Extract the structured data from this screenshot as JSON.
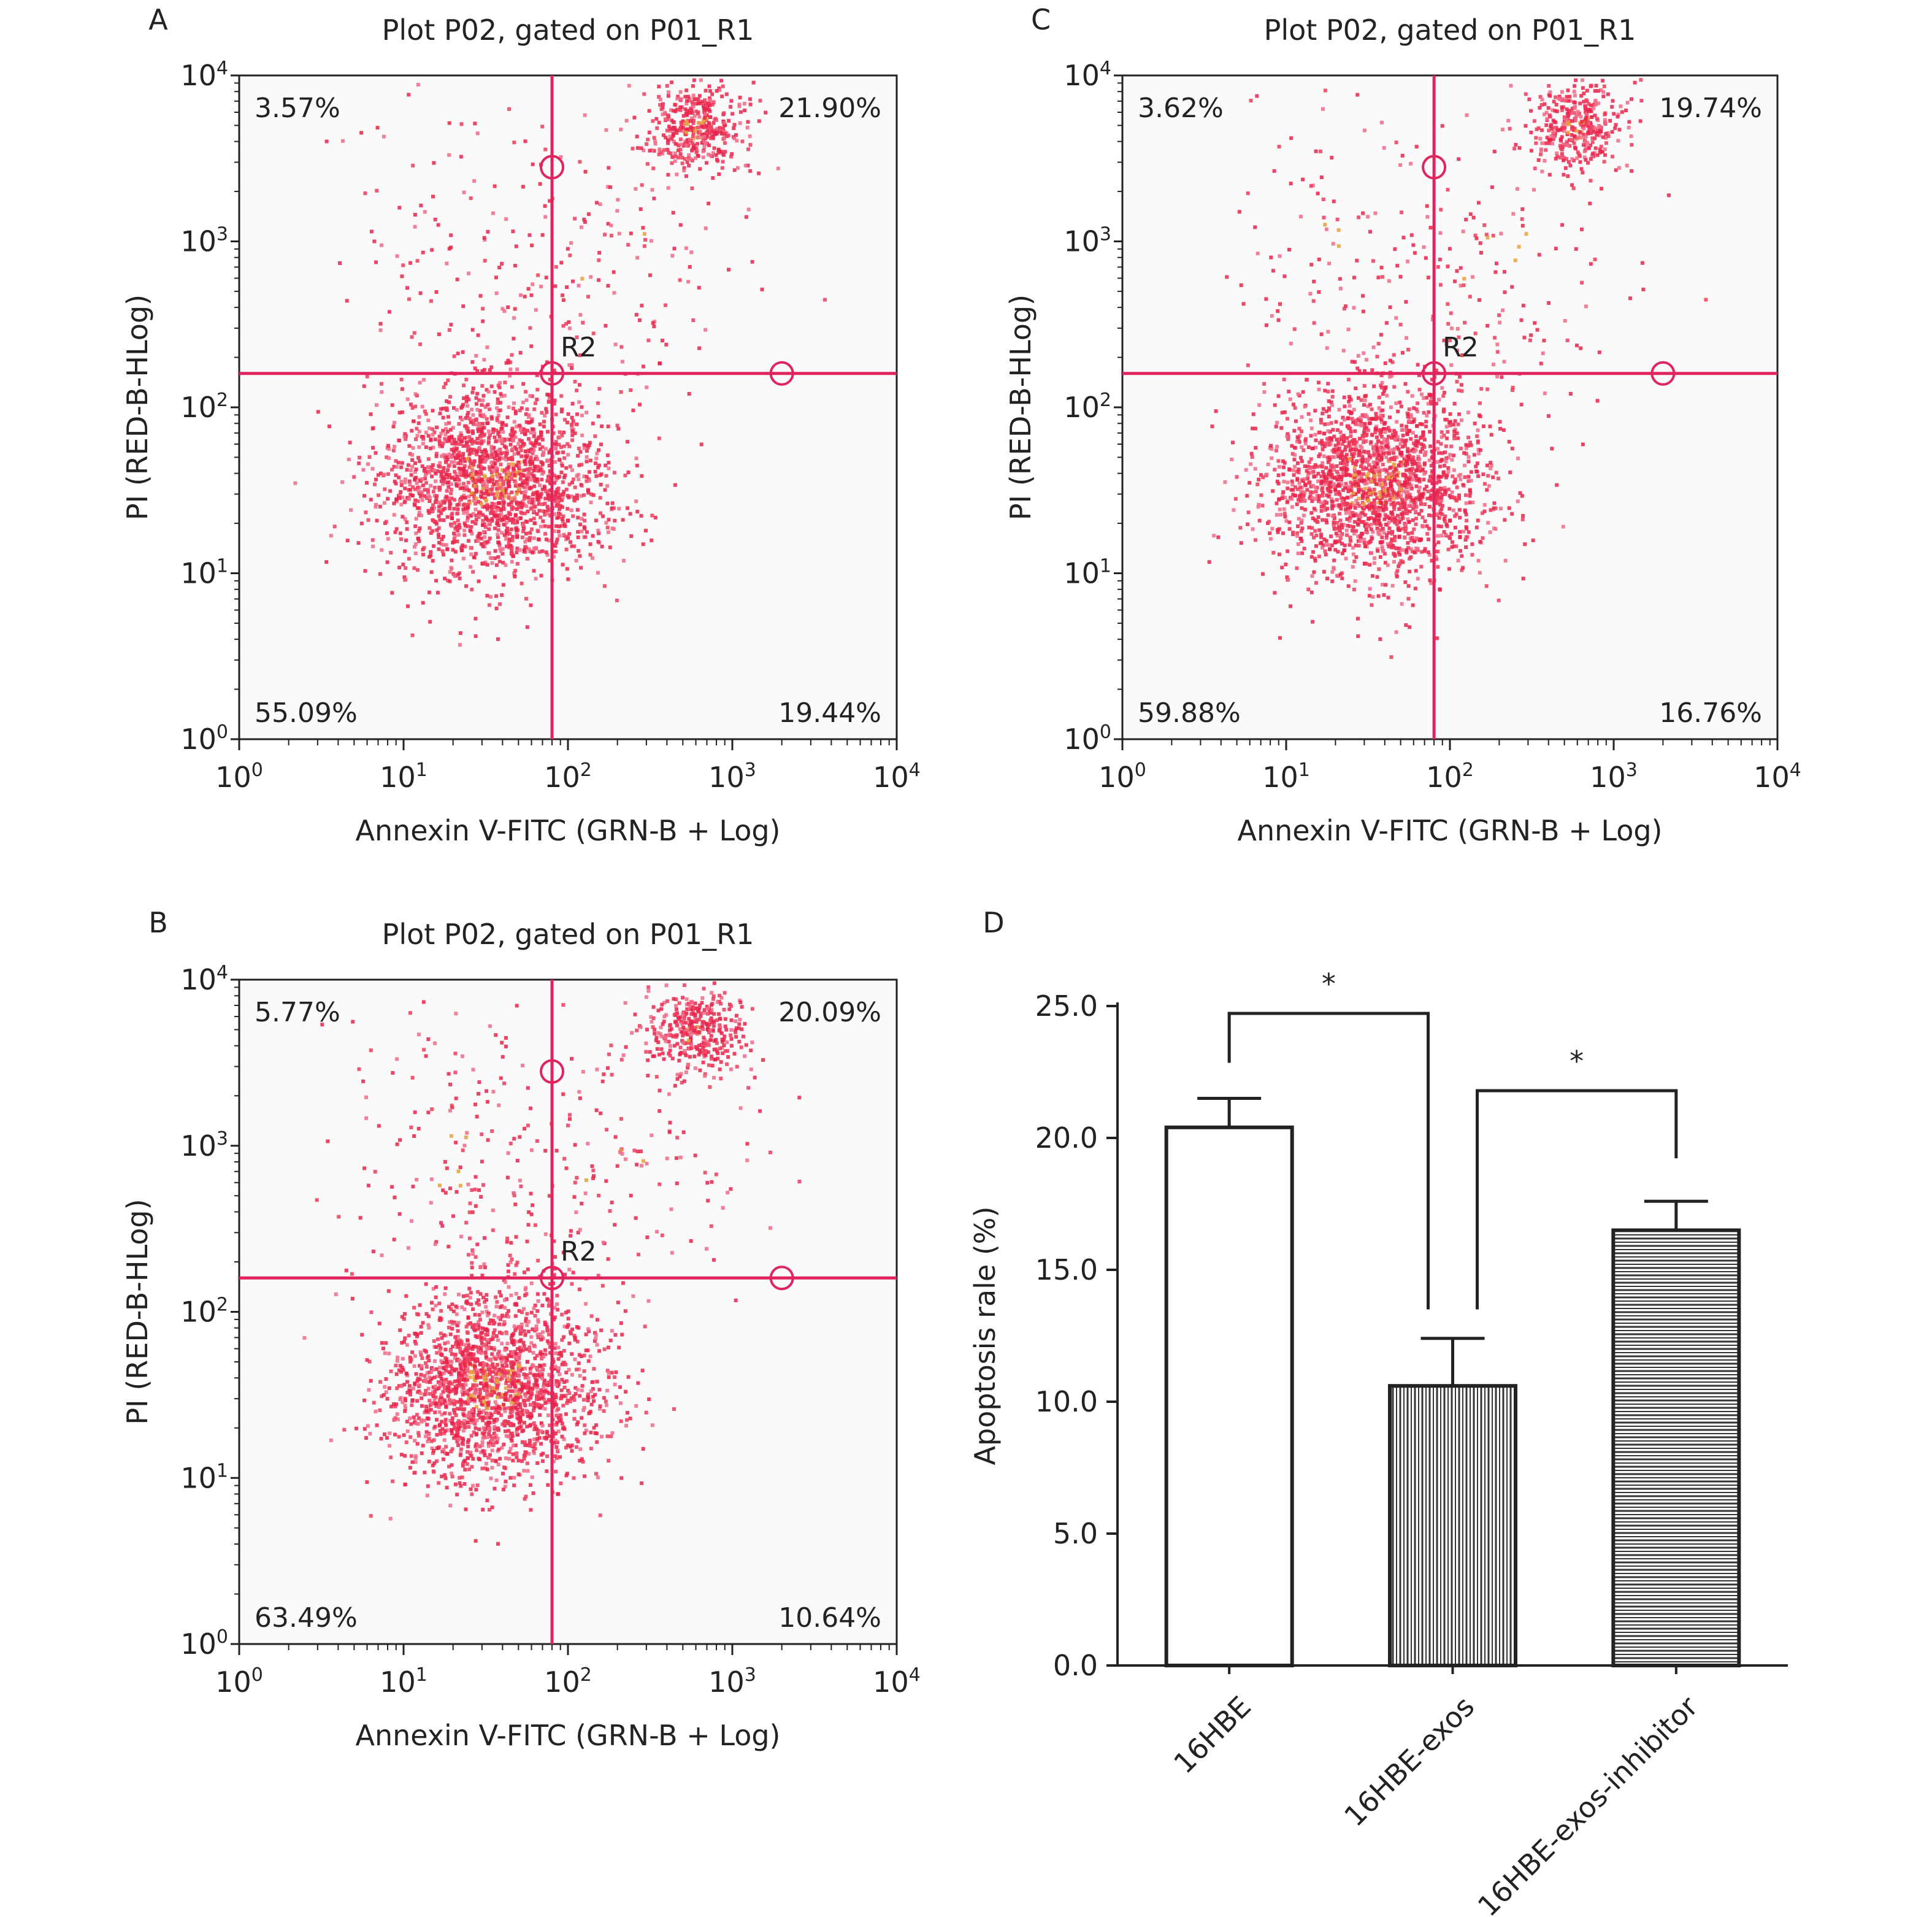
{
  "panels": [
    {
      "letter": "A",
      "title": "Plot P02, gated on P01_R1",
      "xlabel": "Annexin V-FITC (GRN-B + Log)",
      "ylabel": "PI (RED-B-HLog)",
      "region_label": "R2",
      "quadrants": {
        "ul": "3.57%",
        "ur": "21.90%",
        "ll": "55.09%",
        "lr": "19.44%"
      }
    },
    {
      "letter": "B",
      "title": "Plot P02, gated on P01_R1",
      "xlabel": "Annexin V-FITC (GRN-B + Log)",
      "ylabel": "PI (RED-B-HLog)",
      "region_label": "R2",
      "quadrants": {
        "ul": "5.77%",
        "ur": "20.09%",
        "ll": "63.49%",
        "lr": "10.64%"
      }
    },
    {
      "letter": "C",
      "title": "Plot P02, gated on P01_R1",
      "xlabel": "Annexin V-FITC (GRN-B + Log)",
      "ylabel": "PI (RED-B-HLog)",
      "region_label": "R2",
      "quadrants": {
        "ul": "3.62%",
        "ur": "19.74%",
        "ll": "59.88%",
        "lr": "16.76%"
      }
    }
  ],
  "bar_panel_letter": "D",
  "chart_data": [
    {
      "type": "scatter",
      "panel": "A",
      "title": "Plot P02, gated on P01_R1",
      "xlabel": "Annexin V-FITC (GRN-B + Log)",
      "ylabel": "PI (RED-B-HLog)",
      "xscale": "log",
      "yscale": "log",
      "xlim": [
        1,
        10000
      ],
      "ylim": [
        1,
        10000
      ],
      "x_ticks": [
        "10^0",
        "10^1",
        "10^2",
        "10^3",
        "10^4"
      ],
      "y_ticks": [
        "10^0",
        "10^1",
        "10^2",
        "10^3",
        "10^4"
      ],
      "gate": {
        "x": 80,
        "y": 160
      },
      "quadrant_percent": {
        "upper_left": 3.57,
        "upper_right": 21.9,
        "lower_left": 55.09,
        "lower_right": 19.44
      },
      "color": "#e8234a"
    },
    {
      "type": "scatter",
      "panel": "B",
      "title": "Plot P02, gated on P01_R1",
      "xlabel": "Annexin V-FITC (GRN-B + Log)",
      "ylabel": "PI (RED-B-HLog)",
      "xscale": "log",
      "yscale": "log",
      "xlim": [
        1,
        10000
      ],
      "ylim": [
        1,
        10000
      ],
      "x_ticks": [
        "10^0",
        "10^1",
        "10^2",
        "10^3",
        "10^4"
      ],
      "y_ticks": [
        "10^0",
        "10^1",
        "10^2",
        "10^3",
        "10^4"
      ],
      "gate": {
        "x": 80,
        "y": 160
      },
      "quadrant_percent": {
        "upper_left": 5.77,
        "upper_right": 20.09,
        "lower_left": 63.49,
        "lower_right": 10.64
      },
      "color": "#e8234a"
    },
    {
      "type": "scatter",
      "panel": "C",
      "title": "Plot P02, gated on P01_R1",
      "xlabel": "Annexin V-FITC (GRN-B + Log)",
      "ylabel": "PI (RED-B-HLog)",
      "xscale": "log",
      "yscale": "log",
      "xlim": [
        1,
        10000
      ],
      "ylim": [
        1,
        10000
      ],
      "x_ticks": [
        "10^0",
        "10^1",
        "10^2",
        "10^3",
        "10^4"
      ],
      "y_ticks": [
        "10^0",
        "10^1",
        "10^2",
        "10^3",
        "10^4"
      ],
      "gate": {
        "x": 80,
        "y": 160
      },
      "quadrant_percent": {
        "upper_left": 3.62,
        "upper_right": 19.74,
        "lower_left": 59.88,
        "lower_right": 16.76
      },
      "color": "#e8234a"
    },
    {
      "type": "bar",
      "panel": "D",
      "categories": [
        "16HBE",
        "16HBE-exos",
        "16HBE-exos-inhibitor"
      ],
      "values": [
        20.4,
        10.6,
        16.5
      ],
      "errors": [
        1.1,
        1.8,
        1.1
      ],
      "patterns": [
        "none",
        "vertical",
        "horizontal"
      ],
      "ylabel": "Apoptosis rale (%)",
      "ylim": [
        0,
        25
      ],
      "y_ticks": [
        "0.0",
        "5.0",
        "10.0",
        "15.0",
        "20.0",
        "25.0"
      ],
      "significance": [
        {
          "from": 0,
          "to": 1,
          "label": "*"
        },
        {
          "from": 1,
          "to": 2,
          "label": "*"
        }
      ]
    }
  ]
}
